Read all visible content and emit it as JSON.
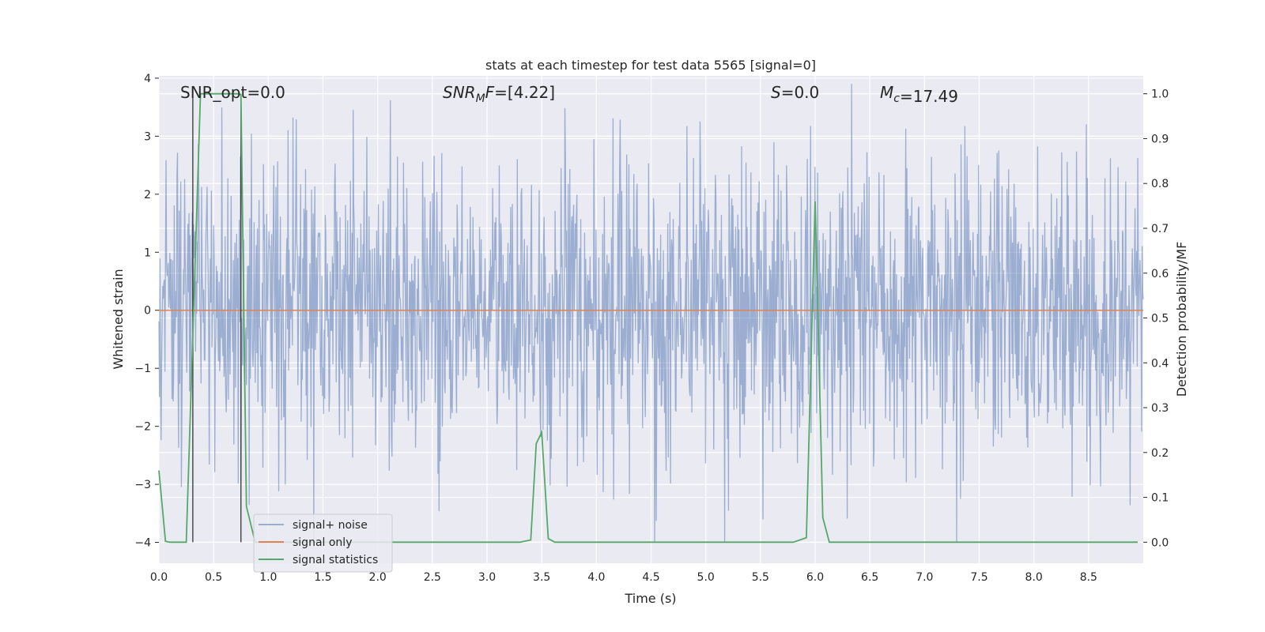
{
  "chart_data": {
    "type": "line",
    "title": "stats at each timestep for test data 5565 [signal=0]",
    "xlabel": "Time (s)",
    "ylabel_left": "Whitened strain",
    "ylabel_right": "Detection probability/MF",
    "xlim": [
      0.0,
      9.0
    ],
    "ylim_left": [
      -4.36,
      4.04
    ],
    "ylim_right": [
      -0.047,
      1.04
    ],
    "x_ticks": [
      "0.0",
      "0.5",
      "1.0",
      "1.5",
      "2.0",
      "2.5",
      "3.0",
      "3.5",
      "4.0",
      "4.5",
      "5.0",
      "5.5",
      "6.0",
      "6.5",
      "7.0",
      "7.5",
      "8.0",
      "8.5"
    ],
    "y_ticks_left": [
      "−4",
      "−3",
      "−2",
      "−1",
      "0",
      "1",
      "2",
      "3",
      "4"
    ],
    "y_ticks_right": [
      "0.0",
      "0.1",
      "0.2",
      "0.3",
      "0.4",
      "0.5",
      "0.6",
      "0.7",
      "0.8",
      "0.9",
      "1.0"
    ],
    "grid": true,
    "legend_placement": "lower-left",
    "annotations": [
      {
        "prefix": "SNR_opt",
        "sub": "",
        "value": "=0.0",
        "italic": false
      },
      {
        "prefix": "SNR",
        "sub": "M",
        "suffix": "F",
        "value": "=[4.22]",
        "italic": true
      },
      {
        "prefix": "S",
        "sub": "",
        "value": "=0.0",
        "italic": true
      },
      {
        "prefix": "M",
        "sub": "c",
        "value": "=17.49",
        "italic": true
      }
    ],
    "vertical_markers_x": [
      0.31,
      0.75
    ],
    "series": [
      {
        "name": "signal+ noise",
        "axis": "left",
        "color": "#4c72b0",
        "opacity": 0.5,
        "kind": "noise",
        "n_samples": 1800,
        "sigma": 1.0,
        "range": [
          -4.0,
          3.9
        ]
      },
      {
        "name": "signal only",
        "axis": "left",
        "color": "#dd8452",
        "x": [
          0.0,
          9.0
        ],
        "y": [
          0.0,
          0.0
        ]
      },
      {
        "name": "signal statistics",
        "axis": "right",
        "color": "#55a868",
        "x": [
          0.0,
          0.06,
          0.1,
          0.25,
          0.38,
          0.45,
          0.72,
          0.75,
          0.8,
          0.88,
          1.2,
          2.0,
          3.0,
          3.3,
          3.4,
          3.45,
          3.5,
          3.56,
          3.62,
          4.0,
          5.0,
          5.8,
          5.92,
          6.0,
          6.07,
          6.13,
          6.5,
          7.5,
          8.5,
          8.95
        ],
        "y": [
          0.16,
          0.002,
          0.0,
          0.0,
          1.0,
          1.0,
          1.0,
          0.998,
          0.08,
          0.0,
          0.0,
          0.0,
          0.0,
          0.0,
          0.005,
          0.22,
          0.245,
          0.008,
          0.0,
          0.0,
          0.0,
          0.0,
          0.01,
          0.76,
          0.055,
          0.0,
          0.0,
          0.0,
          0.0,
          0.0
        ]
      }
    ]
  }
}
